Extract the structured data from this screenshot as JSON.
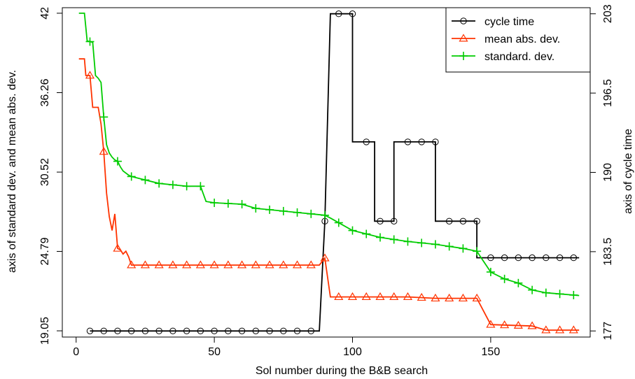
{
  "chart_data": {
    "type": "line",
    "xlabel": "Sol number during the B&B search",
    "ylabel_left": "axis of standard dev. and mean abs. dev.",
    "ylabel_right": "axis of cycle time",
    "xlim": [
      -5,
      186
    ],
    "ylim_left": [
      18.6,
      42.4
    ],
    "ylim_right": [
      176.5,
      203.5
    ],
    "x_ticks": [
      0,
      50,
      100,
      150
    ],
    "y_left_ticks": [
      "19.05",
      "24.79",
      "30.52",
      "36.26",
      "42"
    ],
    "y_left_tick_values": [
      19.05,
      24.79,
      30.52,
      36.26,
      42
    ],
    "y_right_ticks": [
      "177",
      "183.5",
      "190",
      "196.5",
      "203"
    ],
    "y_right_tick_values": [
      177,
      183.5,
      190,
      196.5,
      203
    ],
    "legend_position": "top-right",
    "series": [
      {
        "name": "cycle time",
        "axis": "right",
        "color": "#000000",
        "marker": "circle",
        "points": [
          [
            5,
            177
          ],
          [
            88,
            177
          ],
          [
            90,
            186
          ],
          [
            92,
            203
          ],
          [
            100,
            203
          ],
          [
            100,
            192.5
          ],
          [
            105,
            192.5
          ],
          [
            108,
            192.5
          ],
          [
            108,
            186
          ],
          [
            110,
            186
          ],
          [
            115,
            186
          ],
          [
            115,
            192.5
          ],
          [
            120,
            192.5
          ],
          [
            125,
            192.5
          ],
          [
            130,
            192.5
          ],
          [
            130,
            186
          ],
          [
            135,
            186
          ],
          [
            140,
            186
          ],
          [
            145,
            186
          ],
          [
            145,
            183
          ],
          [
            150,
            183
          ],
          [
            182,
            183
          ]
        ],
        "markers_x": [
          5,
          10,
          15,
          20,
          25,
          30,
          35,
          40,
          45,
          50,
          55,
          60,
          65,
          70,
          75,
          80,
          85,
          90,
          95,
          100,
          105,
          110,
          115,
          120,
          125,
          130,
          135,
          140,
          145,
          150,
          155,
          160,
          165,
          170,
          175,
          180
        ]
      },
      {
        "name": "mean abs. dev.",
        "axis": "left",
        "color": "#ff3300",
        "marker": "triangle",
        "points": [
          [
            1,
            38.7
          ],
          [
            3,
            38.7
          ],
          [
            3.5,
            37.5
          ],
          [
            5,
            37.5
          ],
          [
            6,
            35.2
          ],
          [
            8,
            35.2
          ],
          [
            9,
            34
          ],
          [
            10,
            32
          ],
          [
            11,
            29
          ],
          [
            12,
            27.3
          ],
          [
            13,
            26.3
          ],
          [
            14,
            27.5
          ],
          [
            15,
            25
          ],
          [
            16,
            24.9
          ],
          [
            17,
            24.6
          ],
          [
            18,
            24.8
          ],
          [
            19,
            24.4
          ],
          [
            20,
            23.8
          ],
          [
            50,
            23.8
          ],
          [
            88,
            23.8
          ],
          [
            90,
            24.3
          ],
          [
            92,
            21.5
          ],
          [
            120,
            21.5
          ],
          [
            130,
            21.4
          ],
          [
            145,
            21.4
          ],
          [
            150,
            19.5
          ],
          [
            165,
            19.4
          ],
          [
            170,
            19.1
          ],
          [
            182,
            19.1
          ]
        ],
        "markers_x": [
          5,
          10,
          15,
          20,
          25,
          30,
          35,
          40,
          45,
          50,
          55,
          60,
          65,
          70,
          75,
          80,
          85,
          90,
          95,
          100,
          105,
          110,
          115,
          120,
          125,
          130,
          135,
          140,
          145,
          150,
          155,
          160,
          165,
          170,
          175,
          180
        ]
      },
      {
        "name": "standard. dev.",
        "axis": "left",
        "color": "#00cc00",
        "marker": "plus",
        "points": [
          [
            1,
            42
          ],
          [
            3,
            42
          ],
          [
            4,
            40
          ],
          [
            6,
            39.9
          ],
          [
            7,
            37.5
          ],
          [
            8,
            37.3
          ],
          [
            9,
            37
          ],
          [
            10,
            34.5
          ],
          [
            11,
            32.5
          ],
          [
            12,
            31.9
          ],
          [
            13,
            31.6
          ],
          [
            14,
            31.4
          ],
          [
            15,
            31.3
          ],
          [
            16,
            30.9
          ],
          [
            17,
            30.6
          ],
          [
            19,
            30.3
          ],
          [
            20,
            30.2
          ],
          [
            30,
            29.7
          ],
          [
            40,
            29.5
          ],
          [
            45,
            29.5
          ],
          [
            47,
            28.4
          ],
          [
            50,
            28.3
          ],
          [
            60,
            28.2
          ],
          [
            65,
            27.9
          ],
          [
            70,
            27.8
          ],
          [
            80,
            27.6
          ],
          [
            90,
            27.4
          ],
          [
            92,
            27.2
          ],
          [
            100,
            26.3
          ],
          [
            110,
            25.8
          ],
          [
            120,
            25.5
          ],
          [
            130,
            25.3
          ],
          [
            140,
            25.0
          ],
          [
            145,
            24.8
          ],
          [
            147,
            24.2
          ],
          [
            150,
            23.3
          ],
          [
            155,
            22.8
          ],
          [
            160,
            22.5
          ],
          [
            165,
            22.0
          ],
          [
            170,
            21.8
          ],
          [
            182,
            21.6
          ]
        ],
        "markers_x": [
          5,
          10,
          15,
          20,
          25,
          30,
          35,
          40,
          45,
          50,
          55,
          60,
          65,
          70,
          75,
          80,
          85,
          90,
          95,
          100,
          105,
          110,
          115,
          120,
          125,
          130,
          135,
          140,
          145,
          150,
          155,
          160,
          165,
          170,
          175,
          180
        ]
      }
    ]
  }
}
